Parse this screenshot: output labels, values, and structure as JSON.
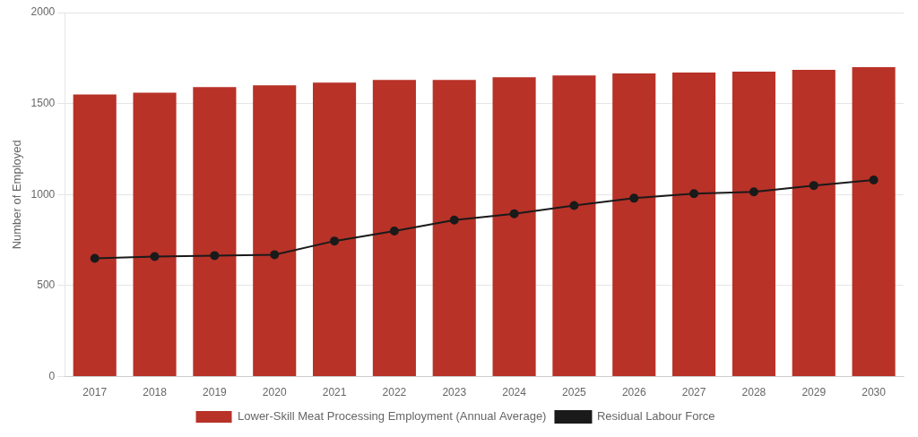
{
  "chart_data": {
    "type": "bar",
    "categories": [
      "2017",
      "2018",
      "2019",
      "2020",
      "2021",
      "2022",
      "2023",
      "2024",
      "2025",
      "2026",
      "2027",
      "2028",
      "2029",
      "2030"
    ],
    "series": [
      {
        "name": "Lower-Skill Meat Processing Employment (Annual Average)",
        "type": "bar",
        "color": "#b83228",
        "values": [
          1550,
          1560,
          1590,
          1600,
          1615,
          1630,
          1630,
          1645,
          1655,
          1665,
          1670,
          1675,
          1685,
          1700
        ]
      },
      {
        "name": "Residual Labour Force",
        "type": "line",
        "color": "#1a1a1a",
        "marker": "circle",
        "line_style": "solid",
        "values": [
          650,
          660,
          665,
          670,
          745,
          800,
          860,
          895,
          940,
          980,
          1005,
          1015,
          1050,
          1080
        ]
      }
    ],
    "ylabel": "Number of Employed",
    "ylim": [
      0,
      2000
    ],
    "yticks": [
      0,
      500,
      1000,
      1500,
      2000
    ],
    "grid": true,
    "legend": "bottom"
  }
}
